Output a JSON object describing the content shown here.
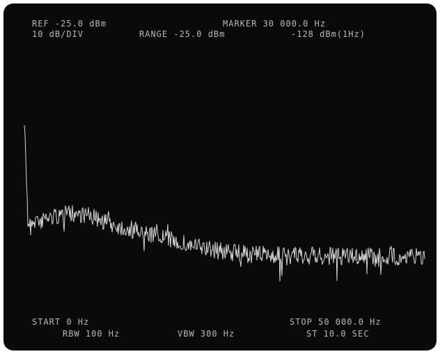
{
  "display": {
    "header": {
      "ref": "REF -25.0 dBm",
      "marker": "MARKER 30 000.0 Hz",
      "scale": "10 dB/DIV",
      "range": "RANGE -25.0 dBm",
      "marker_level": "-128 dBm(1Hz)"
    },
    "footer": {
      "start": "START 0 Hz",
      "rbw": "RBW 100 Hz",
      "vbw": "VBW 300 Hz",
      "stop": "STOP 50 000.0 Hz",
      "sweep": "ST 10.0 SEC"
    }
  }
}
